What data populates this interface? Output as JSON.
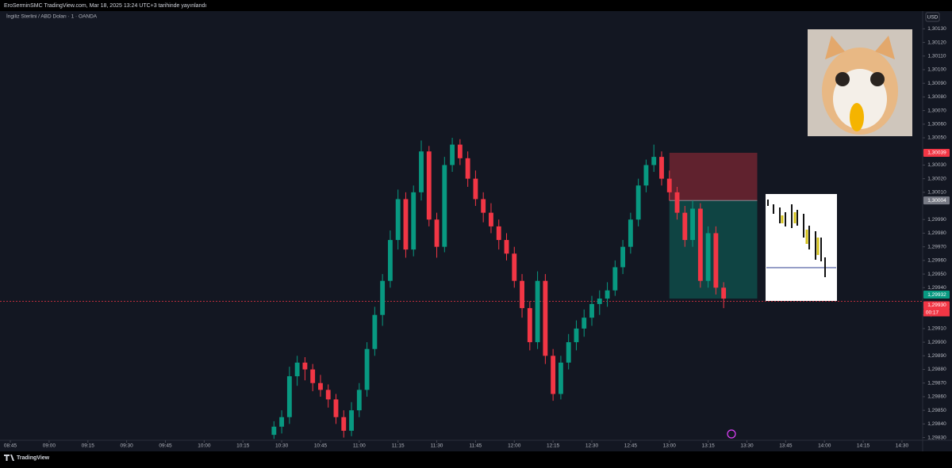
{
  "header": {
    "title": "EroSerminSMC TradingView.com, Mar 18, 2025 13:24 UTC+3 tarihinde yayınlandı"
  },
  "footer": {
    "brand": "TradingView"
  },
  "chart_data": {
    "type": "candlestick",
    "symbol": "İngiliz Sterlini / ABD Doları · 1 · OANDA",
    "currency": "USD",
    "up_color": "#089981",
    "down_color": "#f23645",
    "xlim": [
      "08:41",
      "14:38"
    ],
    "xticks": [
      "08:45",
      "09:00",
      "09:15",
      "09:30",
      "09:45",
      "10:00",
      "10:15",
      "10:30",
      "10:45",
      "11:00",
      "11:15",
      "11:30",
      "11:45",
      "12:00",
      "12:15",
      "12:30",
      "12:45",
      "13:00",
      "13:15",
      "13:30",
      "13:45",
      "14:00",
      "14:15",
      "14:30"
    ],
    "ylim": [
      1.29828,
      1.30143
    ],
    "yticks": [
      {
        "value": 1.3013,
        "label": "1,30130"
      },
      {
        "value": 1.3012,
        "label": "1,30120"
      },
      {
        "value": 1.3011,
        "label": "1,30110"
      },
      {
        "value": 1.301,
        "label": "1,30100"
      },
      {
        "value": 1.3009,
        "label": "1,30090"
      },
      {
        "value": 1.3008,
        "label": "1,30080"
      },
      {
        "value": 1.3007,
        "label": "1,30070"
      },
      {
        "value": 1.3006,
        "label": "1,30060"
      },
      {
        "value": 1.3005,
        "label": "1,30050"
      },
      {
        "value": 1.3003,
        "label": "1,30030"
      },
      {
        "value": 1.3002,
        "label": "1,30020"
      },
      {
        "value": 1.3001,
        "label": "1,30010"
      },
      {
        "value": 1.2999,
        "label": "1,29990"
      },
      {
        "value": 1.2998,
        "label": "1,29980"
      },
      {
        "value": 1.2997,
        "label": "1,29970"
      },
      {
        "value": 1.2996,
        "label": "1,29960"
      },
      {
        "value": 1.2995,
        "label": "1,29950"
      },
      {
        "value": 1.2994,
        "label": "1,29940"
      },
      {
        "value": 1.2992,
        "label": "1,29920"
      },
      {
        "value": 1.2991,
        "label": "1,29910"
      },
      {
        "value": 1.299,
        "label": "1,29900"
      },
      {
        "value": 1.2989,
        "label": "1,29890"
      },
      {
        "value": 1.2988,
        "label": "1,29880"
      },
      {
        "value": 1.2987,
        "label": "1,29870"
      },
      {
        "value": 1.2986,
        "label": "1,29860"
      },
      {
        "value": 1.2985,
        "label": "1,29850"
      },
      {
        "value": 1.2984,
        "label": "1,29840"
      },
      {
        "value": 1.2983,
        "label": "1,29830"
      }
    ],
    "x": [
      "10:27",
      "10:30",
      "10:33",
      "10:36",
      "10:39",
      "10:42",
      "10:45",
      "10:48",
      "10:51",
      "10:54",
      "10:57",
      "11:00",
      "11:03",
      "11:06",
      "11:09",
      "11:12",
      "11:15",
      "11:18",
      "11:21",
      "11:24",
      "11:27",
      "11:30",
      "11:33",
      "11:36",
      "11:39",
      "11:42",
      "11:45",
      "11:48",
      "11:51",
      "11:54",
      "11:57",
      "12:00",
      "12:03",
      "12:06",
      "12:09",
      "12:12",
      "12:15",
      "12:18",
      "12:21",
      "12:24",
      "12:27",
      "12:30",
      "12:33",
      "12:36",
      "12:39",
      "12:42",
      "12:45",
      "12:48",
      "12:51",
      "12:54",
      "12:57",
      "13:00",
      "13:03",
      "13:06",
      "13:09",
      "13:12",
      "13:15",
      "13:18",
      "13:21"
    ],
    "candles": [
      [
        1.29832,
        1.29842,
        1.29829,
        1.29838
      ],
      [
        1.29838,
        1.2985,
        1.29833,
        1.29845
      ],
      [
        1.29845,
        1.29882,
        1.2984,
        1.29875
      ],
      [
        1.29875,
        1.2989,
        1.29868,
        1.29885
      ],
      [
        1.29885,
        1.29889,
        1.29872,
        1.2988
      ],
      [
        1.2988,
        1.29884,
        1.29864,
        1.2987
      ],
      [
        1.2987,
        1.29876,
        1.2986,
        1.29865
      ],
      [
        1.29865,
        1.29869,
        1.29852,
        1.29858
      ],
      [
        1.29858,
        1.29862,
        1.2984,
        1.29845
      ],
      [
        1.29845,
        1.2985,
        1.2983,
        1.29835
      ],
      [
        1.29835,
        1.29856,
        1.29831,
        1.2985
      ],
      [
        1.2985,
        1.2987,
        1.29845,
        1.29865
      ],
      [
        1.29865,
        1.299,
        1.2986,
        1.29895
      ],
      [
        1.29895,
        1.29926,
        1.2989,
        1.2992
      ],
      [
        1.2992,
        1.2995,
        1.29912,
        1.29945
      ],
      [
        1.29945,
        1.29982,
        1.2994,
        1.29975
      ],
      [
        1.29975,
        1.30012,
        1.29968,
        1.30005
      ],
      [
        1.30005,
        1.3001,
        1.29962,
        1.29968
      ],
      [
        1.29968,
        1.30015,
        1.29963,
        1.3001
      ],
      [
        1.3001,
        1.30048,
        1.30004,
        1.3004
      ],
      [
        1.3004,
        1.30044,
        1.29985,
        1.2999
      ],
      [
        1.2999,
        1.29995,
        1.29962,
        1.2997
      ],
      [
        1.2997,
        1.30036,
        1.29966,
        1.3003
      ],
      [
        1.3003,
        1.3005,
        1.30025,
        1.30045
      ],
      [
        1.30045,
        1.30049,
        1.3003,
        1.30035
      ],
      [
        1.30035,
        1.3004,
        1.30014,
        1.3002
      ],
      [
        1.3002,
        1.30026,
        1.3,
        1.30005
      ],
      [
        1.30005,
        1.3001,
        1.29988,
        1.29995
      ],
      [
        1.29995,
        1.30002,
        1.2998,
        1.29985
      ],
      [
        1.29985,
        1.2999,
        1.29968,
        1.29975
      ],
      [
        1.29975,
        1.2998,
        1.2996,
        1.29965
      ],
      [
        1.29965,
        1.2997,
        1.2994,
        1.29945
      ],
      [
        1.29945,
        1.2995,
        1.29918,
        1.29925
      ],
      [
        1.29925,
        1.2993,
        1.29894,
        1.299
      ],
      [
        1.299,
        1.29952,
        1.29895,
        1.29945
      ],
      [
        1.29945,
        1.2995,
        1.29884,
        1.2989
      ],
      [
        1.2989,
        1.29895,
        1.29857,
        1.29862
      ],
      [
        1.29862,
        1.2989,
        1.29858,
        1.29885
      ],
      [
        1.29885,
        1.29906,
        1.2988,
        1.299
      ],
      [
        1.299,
        1.29916,
        1.29894,
        1.2991
      ],
      [
        1.2991,
        1.29924,
        1.29904,
        1.29918
      ],
      [
        1.29918,
        1.29934,
        1.29912,
        1.29928
      ],
      [
        1.29928,
        1.29938,
        1.2992,
        1.29932
      ],
      [
        1.29932,
        1.29944,
        1.29926,
        1.29938
      ],
      [
        1.29938,
        1.2996,
        1.29934,
        1.29955
      ],
      [
        1.29955,
        1.29975,
        1.2995,
        1.2997
      ],
      [
        1.2997,
        1.29995,
        1.29965,
        1.2999
      ],
      [
        1.2999,
        1.3002,
        1.29985,
        1.30015
      ],
      [
        1.30015,
        1.30034,
        1.3001,
        1.3003
      ],
      [
        1.3003,
        1.30045,
        1.30025,
        1.30036
      ],
      [
        1.30036,
        1.3004,
        1.30015,
        1.3002
      ],
      [
        1.3002,
        1.30026,
        1.30004,
        1.3001
      ],
      [
        1.3001,
        1.30014,
        1.2999,
        1.29995
      ],
      [
        1.29995,
        1.3,
        1.2997,
        1.29975
      ],
      [
        1.29975,
        1.30004,
        1.2997,
        1.29998
      ],
      [
        1.29998,
        1.30002,
        1.2994,
        1.29945
      ],
      [
        1.29945,
        1.29985,
        1.2994,
        1.2998
      ],
      [
        1.2998,
        1.29985,
        1.29935,
        1.2994
      ],
      [
        1.2994,
        1.29944,
        1.29925,
        1.29932
      ]
    ],
    "position": {
      "start": "13:00",
      "end": "13:34"
    },
    "price_labels": [
      {
        "value": 1.30039,
        "label": "1,30039",
        "color": "#f23645"
      },
      {
        "value": 1.30004,
        "label": "1,30004",
        "color": "#787b86"
      },
      {
        "value": 1.29932,
        "label": "1,29932",
        "color": "#089981"
      },
      {
        "value": 1.2993,
        "label": "1,29930",
        "color": "#f23645"
      }
    ],
    "countdown": "00:17"
  }
}
